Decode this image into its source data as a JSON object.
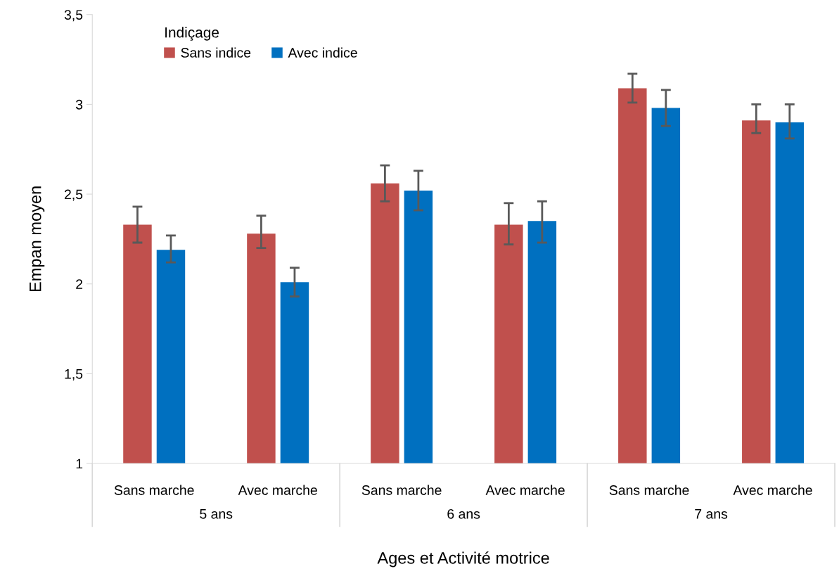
{
  "chart_data": {
    "type": "bar",
    "xlabel": "Ages et Activité motrice",
    "ylabel": "Empan moyen",
    "legend_title": "Indiçage",
    "categories": [
      "Sans marche",
      "Avec marche",
      "Sans marche",
      "Avec marche",
      "Sans marche",
      "Avec marche"
    ],
    "series": [
      {
        "name": "Sans indice",
        "color": "#c0504d",
        "values": [
          2.33,
          2.28,
          2.56,
          2.33,
          3.09,
          2.91
        ],
        "errors": [
          [
            2.23,
            2.43
          ],
          [
            2.2,
            2.38
          ],
          [
            2.46,
            2.66
          ],
          [
            2.22,
            2.45
          ],
          [
            3.01,
            3.17
          ],
          [
            2.84,
            3.0
          ]
        ]
      },
      {
        "name": "Avec indice",
        "color": "#0070c0",
        "values": [
          2.19,
          2.01,
          2.52,
          2.35,
          2.98,
          2.9
        ],
        "errors": [
          [
            2.12,
            2.27
          ],
          [
            1.93,
            2.09
          ],
          [
            2.41,
            2.63
          ],
          [
            2.23,
            2.46
          ],
          [
            2.88,
            3.08
          ],
          [
            2.81,
            3.0
          ]
        ]
      }
    ],
    "annotations": [
      "5 ans",
      "6 ans",
      "7 ans"
    ],
    "ylim": [
      1,
      3.5
    ],
    "yticks": [
      1,
      {
        "value": 1.5,
        "label": "1,5"
      },
      2,
      {
        "value": 2.5,
        "label": "2,5"
      },
      3,
      {
        "value": 3.5,
        "label": "3,5"
      }
    ],
    "legend": "top left",
    "grid": false
  }
}
